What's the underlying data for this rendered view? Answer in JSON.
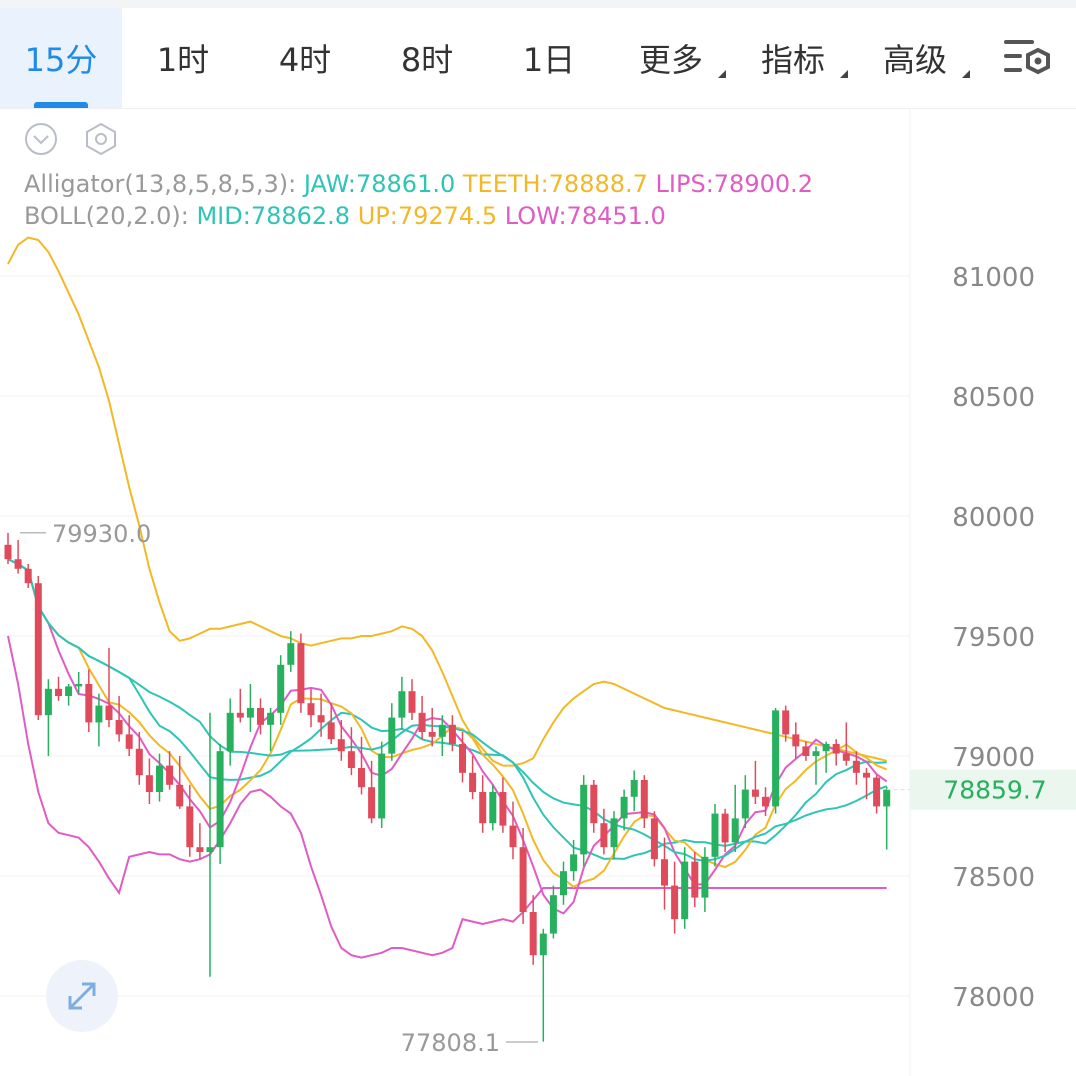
{
  "tabs": [
    {
      "label": "15分",
      "active": true
    },
    {
      "label": "1时",
      "active": false
    },
    {
      "label": "4时",
      "active": false
    },
    {
      "label": "8时",
      "active": false
    },
    {
      "label": "1日",
      "active": false
    },
    {
      "label": "更多",
      "active": false,
      "dropdown": true
    },
    {
      "label": "指标",
      "active": false,
      "dropdown": true
    },
    {
      "label": "高级",
      "active": false,
      "dropdown": true
    }
  ],
  "icons": {
    "settings": "chart-settings-icon",
    "collapse": "chevron-down-circle-icon",
    "hexagon": "hexagon-settings-icon",
    "expand": "expand-arrows-icon"
  },
  "indicators": {
    "alligator": {
      "label": "Alligator(13,8,5,8,5,3):",
      "jaw": "JAW:78861.0",
      "teeth": "TEETH:78888.7",
      "lips": "LIPS:78900.2"
    },
    "boll": {
      "label": "BOLL(20,2.0):",
      "mid": "MID:78862.8",
      "up": "UP:79274.5",
      "low": "LOW:78451.0"
    }
  },
  "colors": {
    "up": "#27b05d",
    "down": "#e04b5c",
    "jaw": "#2ec4b6",
    "teeth": "#f2b826",
    "lips": "#e05cc4",
    "text_gray": "#999999",
    "accent": "#1f8ae8"
  },
  "chart_data": {
    "type": "candlestick",
    "ylim": [
      77720,
      81400
    ],
    "y_ticks": [
      81000,
      80500,
      80000,
      79500,
      79000,
      78500,
      78000
    ],
    "current_price": "78859.7",
    "max_marker": {
      "label": "79930.0",
      "value": 79930.0
    },
    "min_marker": {
      "label": "77808.1",
      "value": 77808.1
    },
    "candles": [
      [
        79880,
        79930,
        79800,
        79820
      ],
      [
        79820,
        79900,
        79760,
        79780
      ],
      [
        79780,
        79800,
        79700,
        79720
      ],
      [
        79720,
        79750,
        79150,
        79170
      ],
      [
        79170,
        79320,
        79000,
        79280
      ],
      [
        79280,
        79330,
        79230,
        79250
      ],
      [
        79250,
        79300,
        79210,
        79290
      ],
      [
        79290,
        79350,
        79260,
        79300
      ],
      [
        79300,
        79360,
        79100,
        79140
      ],
      [
        79140,
        79260,
        79040,
        79210
      ],
      [
        79210,
        79450,
        79120,
        79150
      ],
      [
        79150,
        79250,
        79060,
        79090
      ],
      [
        79090,
        79170,
        79000,
        79030
      ],
      [
        79030,
        79100,
        78880,
        78920
      ],
      [
        78920,
        78990,
        78800,
        78850
      ],
      [
        78850,
        79010,
        78810,
        78960
      ],
      [
        78960,
        79020,
        78860,
        78880
      ],
      [
        78880,
        79000,
        78780,
        78790
      ],
      [
        78790,
        78880,
        78580,
        78620
      ],
      [
        78620,
        78720,
        78570,
        78600
      ],
      [
        78600,
        79180,
        78080,
        78620
      ],
      [
        78620,
        79050,
        78550,
        79020
      ],
      [
        79020,
        79240,
        78960,
        79180
      ],
      [
        79180,
        79280,
        79140,
        79160
      ],
      [
        79160,
        79300,
        79100,
        79200
      ],
      [
        79200,
        79240,
        79090,
        79130
      ],
      [
        79130,
        79200,
        79020,
        79180
      ],
      [
        79180,
        79420,
        79130,
        79380
      ],
      [
        79380,
        79520,
        79350,
        79470
      ],
      [
        79470,
        79510,
        79180,
        79220
      ],
      [
        79220,
        79280,
        79120,
        79170
      ],
      [
        79170,
        79260,
        79080,
        79140
      ],
      [
        79140,
        79220,
        79050,
        79070
      ],
      [
        79070,
        79150,
        78980,
        79020
      ],
      [
        79020,
        79120,
        78920,
        78950
      ],
      [
        78950,
        79080,
        78840,
        78870
      ],
      [
        78870,
        78980,
        78720,
        78740
      ],
      [
        78740,
        79060,
        78700,
        79010
      ],
      [
        79010,
        79220,
        78980,
        79160
      ],
      [
        79160,
        79330,
        79110,
        79270
      ],
      [
        79270,
        79320,
        79150,
        79180
      ],
      [
        79180,
        79250,
        79070,
        79100
      ],
      [
        79100,
        79200,
        79040,
        79080
      ],
      [
        79080,
        79170,
        79000,
        79130
      ],
      [
        79130,
        79170,
        79020,
        79050
      ],
      [
        79050,
        79100,
        78890,
        78930
      ],
      [
        78930,
        79000,
        78820,
        78850
      ],
      [
        78850,
        78920,
        78680,
        78720
      ],
      [
        78720,
        78880,
        78690,
        78850
      ],
      [
        78850,
        78910,
        78680,
        78710
      ],
      [
        78710,
        78810,
        78570,
        78620
      ],
      [
        78620,
        78700,
        78300,
        78350
      ],
      [
        78350,
        78420,
        78130,
        78170
      ],
      [
        78170,
        78280,
        77810,
        78260
      ],
      [
        78260,
        78460,
        78240,
        78420
      ],
      [
        78420,
        78560,
        78380,
        78520
      ],
      [
        78520,
        78650,
        78480,
        78590
      ],
      [
        78590,
        78920,
        78540,
        78880
      ],
      [
        78880,
        78900,
        78680,
        78720
      ],
      [
        78720,
        78780,
        78590,
        78620
      ],
      [
        78620,
        78770,
        78570,
        78740
      ],
      [
        78740,
        78860,
        78690,
        78830
      ],
      [
        78830,
        78940,
        78770,
        78900
      ],
      [
        78900,
        78920,
        78700,
        78740
      ],
      [
        78740,
        78770,
        78540,
        78570
      ],
      [
        78570,
        78660,
        78360,
        78460
      ],
      [
        78460,
        78560,
        78260,
        78320
      ],
      [
        78320,
        78620,
        78280,
        78560
      ],
      [
        78560,
        78600,
        78370,
        78410
      ],
      [
        78410,
        78620,
        78350,
        78580
      ],
      [
        78580,
        78800,
        78540,
        78760
      ],
      [
        78760,
        78780,
        78600,
        78640
      ],
      [
        78640,
        78880,
        78600,
        78740
      ],
      [
        78740,
        78920,
        78700,
        78860
      ],
      [
        78860,
        78980,
        78800,
        78830
      ],
      [
        78830,
        78870,
        78750,
        78790
      ],
      [
        78790,
        79200,
        78760,
        79190
      ],
      [
        79190,
        79210,
        79060,
        79090
      ],
      [
        79090,
        79140,
        78990,
        79040
      ],
      [
        79040,
        79060,
        78980,
        79000
      ],
      [
        79000,
        79040,
        78880,
        79020
      ],
      [
        79020,
        79060,
        78930,
        79050
      ],
      [
        79050,
        79070,
        78960,
        79010
      ],
      [
        79010,
        79140,
        78960,
        78980
      ],
      [
        78980,
        79020,
        78880,
        78930
      ],
      [
        78930,
        78950,
        78820,
        78910
      ],
      [
        78910,
        78920,
        78760,
        78790
      ],
      [
        78790,
        78870,
        78610,
        78860
      ]
    ],
    "series": [
      {
        "name": "BOLL UP",
        "color": "#f2b826",
        "values": [
          81050,
          81130,
          81160,
          81150,
          81100,
          81020,
          80930,
          80840,
          80730,
          80620,
          80480,
          80300,
          80120,
          79960,
          79780,
          79640,
          79520,
          79480,
          79490,
          79510,
          79530,
          79530,
          79540,
          79550,
          79560,
          79540,
          79520,
          79500,
          79490,
          79470,
          79460,
          79470,
          79480,
          79490,
          79490,
          79500,
          79500,
          79510,
          79520,
          79540,
          79530,
          79500,
          79440,
          79350,
          79250,
          79150,
          79080,
          79030,
          78980,
          78960,
          78960,
          78970,
          78990,
          79070,
          79140,
          79200,
          79240,
          79270,
          79300,
          79310,
          79300,
          79280,
          79260,
          79240,
          79220,
          79200,
          79190,
          79180,
          79170,
          79160,
          79150,
          79140,
          79130,
          79120,
          79110,
          79100,
          79090,
          79080,
          79070,
          79060,
          79050,
          79040,
          79030,
          79020,
          79010,
          79000,
          78990,
          78980
        ]
      },
      {
        "name": "BOLL LOW",
        "color": "#e05cc4",
        "values": [
          79500,
          79300,
          79050,
          78850,
          78720,
          78680,
          78670,
          78660,
          78620,
          78560,
          78490,
          78430,
          78580,
          78590,
          78600,
          78590,
          78590,
          78570,
          78560,
          78570,
          78590,
          78650,
          78720,
          78800,
          78850,
          78860,
          78830,
          78790,
          78760,
          78680,
          78540,
          78420,
          78290,
          78200,
          78170,
          78160,
          78170,
          78180,
          78200,
          78200,
          78190,
          78180,
          78170,
          78180,
          78200,
          78320,
          78310,
          78300,
          78310,
          78320,
          78310,
          78350,
          78400,
          78450,
          78450,
          78450,
          78450,
          78450,
          78450,
          78450,
          78450,
          78450,
          78450,
          78450,
          78450,
          78450,
          78450,
          78450,
          78450,
          78450,
          78450,
          78450,
          78450,
          78450,
          78450,
          78450,
          78450,
          78450,
          78450,
          78450,
          78450,
          78450,
          78450,
          78450,
          78450,
          78450,
          78450,
          78450
        ]
      }
    ]
  }
}
